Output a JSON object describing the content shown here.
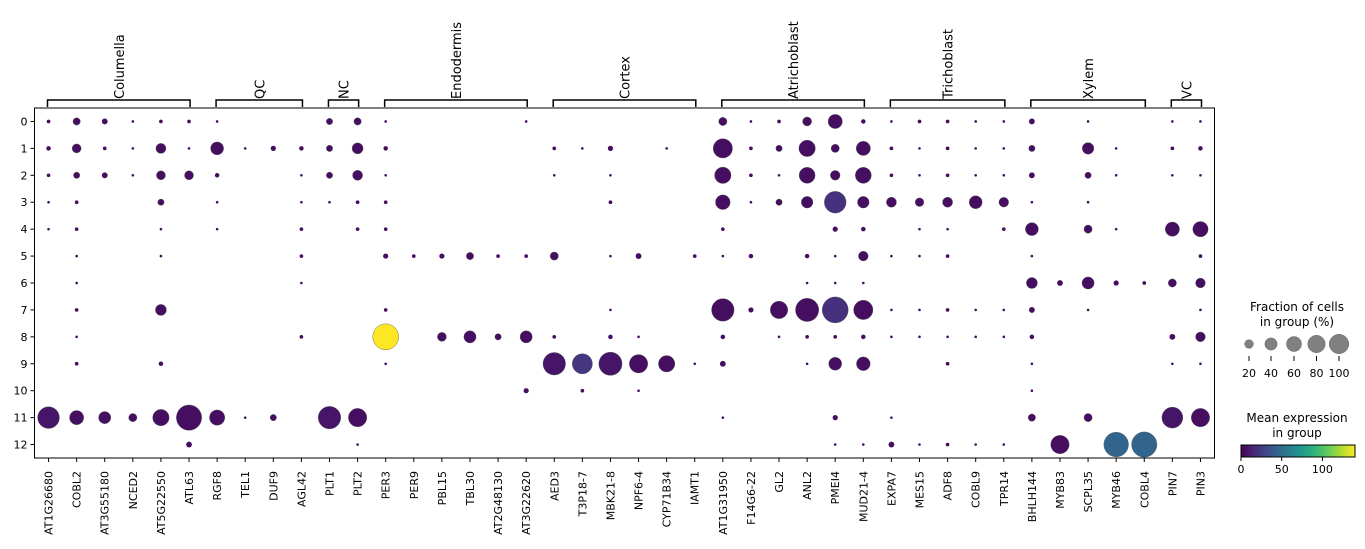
{
  "chart_data": {
    "type": "dotplot",
    "groups": [
      "0",
      "1",
      "2",
      "3",
      "4",
      "5",
      "6",
      "7",
      "8",
      "9",
      "10",
      "11",
      "12"
    ],
    "genes": [
      "AT1G26680",
      "COBL2",
      "AT3G55180",
      "NCED2",
      "AT5G22550",
      "ATL63",
      "RGF8",
      "TEL1",
      "DUF9",
      "AGL42",
      "PLT1",
      "PLT2",
      "PER3",
      "PER9",
      "PBL15",
      "TBL30",
      "AT2G48130",
      "AT3G22620",
      "AED3",
      "T3P18-7",
      "MBK21-8",
      "NPF6-4",
      "CYP71B34",
      "IAMT1",
      "AT1G31950",
      "F14G6-22",
      "GL2",
      "ANL2",
      "PMEI4",
      "MUD21-4",
      "EXPA7",
      "MES15",
      "ADF8",
      "COBL9",
      "TPR14",
      "BHLH144",
      "MYB83",
      "SCPL35",
      "MYB46",
      "COBL4",
      "PIN7",
      "PIN3"
    ],
    "gene_groups": [
      {
        "label": "Columella",
        "start": 0,
        "end": 5
      },
      {
        "label": "QC",
        "start": 6,
        "end": 9
      },
      {
        "label": "NC",
        "start": 10,
        "end": 11
      },
      {
        "label": "Endodermis",
        "start": 12,
        "end": 17
      },
      {
        "label": "Cortex",
        "start": 18,
        "end": 23
      },
      {
        "label": "Atrichoblast",
        "start": 24,
        "end": 29
      },
      {
        "label": "Trichoblast",
        "start": 30,
        "end": 34
      },
      {
        "label": "Xylem",
        "start": 35,
        "end": 39
      },
      {
        "label": "VC",
        "start": 40,
        "end": 41
      }
    ],
    "fraction": [
      [
        2,
        8,
        5,
        1,
        2,
        2,
        1,
        0,
        0,
        0,
        6,
        8,
        1,
        0,
        0,
        0,
        0,
        1,
        0,
        0,
        0,
        0,
        0,
        0,
        10,
        1,
        2,
        12,
        30,
        3,
        1,
        2,
        2,
        1,
        1,
        5,
        0,
        1,
        0,
        0,
        1,
        1
      ],
      [
        3,
        12,
        2,
        1,
        15,
        1,
        25,
        1,
        4,
        3,
        6,
        18,
        3,
        0,
        0,
        0,
        0,
        0,
        2,
        1,
        4,
        0,
        1,
        0,
        55,
        2,
        6,
        40,
        10,
        30,
        2,
        1,
        2,
        1,
        1,
        6,
        0,
        20,
        1,
        0,
        2,
        3
      ],
      [
        2,
        6,
        5,
        1,
        12,
        12,
        3,
        0,
        0,
        1,
        6,
        15,
        1,
        0,
        0,
        0,
        0,
        0,
        1,
        0,
        1,
        0,
        0,
        0,
        40,
        2,
        1,
        38,
        14,
        38,
        2,
        1,
        2,
        1,
        1,
        5,
        0,
        6,
        1,
        0,
        1,
        1
      ],
      [
        1,
        2,
        0,
        0,
        6,
        0,
        1,
        0,
        0,
        1,
        1,
        2,
        2,
        0,
        0,
        0,
        0,
        0,
        0,
        0,
        2,
        0,
        0,
        0,
        32,
        1,
        6,
        20,
        70,
        20,
        15,
        11,
        15,
        25,
        14,
        1,
        0,
        1,
        0,
        0,
        0,
        0
      ],
      [
        1,
        2,
        0,
        0,
        1,
        0,
        1,
        0,
        0,
        2,
        0,
        2,
        2,
        0,
        0,
        0,
        0,
        0,
        0,
        0,
        0,
        0,
        0,
        0,
        2,
        0,
        0,
        0,
        4,
        3,
        0,
        1,
        1,
        0,
        2,
        25,
        0,
        10,
        1,
        0,
        30,
        35
      ],
      [
        0,
        1,
        0,
        0,
        1,
        0,
        0,
        0,
        0,
        2,
        0,
        0,
        4,
        2,
        4,
        8,
        2,
        2,
        10,
        0,
        1,
        5,
        0,
        2,
        1,
        3,
        0,
        3,
        1,
        14,
        1,
        1,
        2,
        0,
        0,
        1,
        0,
        0,
        0,
        0,
        0,
        2
      ],
      [
        0,
        1,
        0,
        0,
        0,
        0,
        0,
        0,
        0,
        1,
        0,
        0,
        0,
        0,
        0,
        0,
        0,
        0,
        0,
        0,
        0,
        0,
        0,
        0,
        0,
        0,
        0,
        1,
        1,
        1,
        0,
        0,
        0,
        0,
        0,
        18,
        5,
        22,
        4,
        2,
        10,
        14
      ],
      [
        0,
        2,
        0,
        0,
        18,
        0,
        0,
        0,
        0,
        0,
        0,
        0,
        2,
        0,
        0,
        0,
        0,
        0,
        0,
        0,
        1,
        0,
        0,
        0,
        75,
        4,
        45,
        80,
        100,
        55,
        1,
        1,
        2,
        1,
        1,
        5,
        0,
        1,
        0,
        0,
        0,
        1
      ],
      [
        0,
        1,
        0,
        0,
        0,
        0,
        0,
        0,
        0,
        2,
        0,
        0,
        100,
        0,
        12,
        22,
        6,
        22,
        2,
        0,
        3,
        1,
        0,
        0,
        3,
        0,
        1,
        2,
        2,
        3,
        1,
        1,
        1,
        1,
        1,
        3,
        0,
        0,
        0,
        0,
        5,
        14
      ],
      [
        0,
        2,
        0,
        0,
        3,
        0,
        0,
        0,
        0,
        0,
        0,
        0,
        1,
        0,
        0,
        0,
        0,
        0,
        75,
        60,
        80,
        50,
        40,
        1,
        5,
        0,
        0,
        1,
        25,
        28,
        0,
        0,
        2,
        0,
        0,
        1,
        0,
        0,
        0,
        0,
        1,
        1
      ],
      [
        0,
        0,
        0,
        0,
        0,
        0,
        0,
        0,
        0,
        0,
        0,
        0,
        0,
        0,
        0,
        0,
        0,
        4,
        0,
        2,
        0,
        1,
        0,
        0,
        0,
        0,
        0,
        0,
        0,
        0,
        0,
        0,
        0,
        0,
        0,
        1,
        0,
        0,
        0,
        0,
        0,
        0
      ],
      [
        70,
        30,
        22,
        10,
        40,
        95,
        35,
        1,
        6,
        0,
        75,
        50,
        0,
        0,
        0,
        0,
        0,
        0,
        0,
        0,
        0,
        0,
        0,
        0,
        1,
        0,
        0,
        0,
        4,
        0,
        1,
        0,
        0,
        0,
        0,
        8,
        0,
        10,
        0,
        0,
        65,
        50
      ],
      [
        0,
        0,
        0,
        0,
        0,
        5,
        0,
        0,
        0,
        0,
        0,
        1,
        0,
        0,
        0,
        0,
        0,
        0,
        0,
        0,
        0,
        0,
        0,
        0,
        0,
        0,
        0,
        0,
        1,
        1,
        5,
        1,
        2,
        1,
        1,
        0,
        50,
        0,
        90,
        95,
        0,
        0
      ]
    ],
    "expression": [
      [
        5,
        5,
        5,
        5,
        5,
        5,
        5,
        5,
        5,
        5,
        5,
        5,
        5,
        5,
        5,
        5,
        5,
        5,
        5,
        5,
        5,
        5,
        5,
        5,
        5,
        5,
        5,
        5,
        5,
        5,
        5,
        5,
        5,
        5,
        5,
        5,
        5,
        5,
        5,
        5,
        5,
        5
      ],
      [
        5,
        5,
        5,
        5,
        5,
        5,
        5,
        5,
        5,
        5,
        5,
        5,
        5,
        5,
        5,
        5,
        5,
        5,
        5,
        5,
        5,
        5,
        5,
        5,
        5,
        5,
        5,
        5,
        5,
        5,
        5,
        5,
        5,
        5,
        5,
        5,
        5,
        5,
        5,
        5,
        5,
        5
      ],
      [
        5,
        5,
        5,
        5,
        5,
        5,
        5,
        5,
        5,
        5,
        5,
        5,
        5,
        5,
        5,
        5,
        5,
        5,
        5,
        5,
        5,
        5,
        5,
        5,
        5,
        5,
        5,
        5,
        5,
        5,
        5,
        5,
        5,
        5,
        5,
        5,
        5,
        5,
        5,
        5,
        5,
        5
      ],
      [
        5,
        5,
        5,
        5,
        5,
        5,
        5,
        5,
        5,
        5,
        5,
        5,
        5,
        5,
        5,
        5,
        5,
        5,
        5,
        5,
        5,
        5,
        5,
        5,
        5,
        5,
        5,
        5,
        20,
        5,
        5,
        5,
        5,
        5,
        5,
        5,
        5,
        5,
        5,
        5,
        5,
        5
      ],
      [
        5,
        5,
        5,
        5,
        5,
        5,
        5,
        5,
        5,
        5,
        5,
        5,
        5,
        5,
        5,
        5,
        5,
        5,
        5,
        5,
        5,
        5,
        5,
        5,
        5,
        5,
        5,
        5,
        5,
        5,
        5,
        5,
        5,
        5,
        5,
        5,
        5,
        5,
        5,
        5,
        5,
        5
      ],
      [
        5,
        5,
        5,
        5,
        5,
        5,
        5,
        5,
        5,
        5,
        5,
        5,
        5,
        5,
        5,
        5,
        5,
        5,
        5,
        5,
        5,
        5,
        5,
        5,
        5,
        5,
        5,
        5,
        5,
        5,
        5,
        5,
        5,
        5,
        5,
        5,
        5,
        5,
        5,
        5,
        5,
        5
      ],
      [
        5,
        5,
        5,
        5,
        5,
        5,
        5,
        5,
        5,
        5,
        5,
        5,
        5,
        5,
        5,
        5,
        5,
        5,
        5,
        5,
        5,
        5,
        5,
        5,
        5,
        5,
        5,
        5,
        5,
        5,
        5,
        5,
        5,
        5,
        5,
        5,
        5,
        5,
        5,
        5,
        5,
        5
      ],
      [
        5,
        5,
        5,
        5,
        5,
        5,
        5,
        5,
        5,
        5,
        5,
        5,
        5,
        5,
        5,
        5,
        5,
        5,
        5,
        5,
        5,
        5,
        5,
        5,
        5,
        5,
        5,
        5,
        20,
        5,
        5,
        5,
        5,
        5,
        5,
        5,
        5,
        5,
        5,
        5,
        5,
        5
      ],
      [
        5,
        5,
        5,
        5,
        5,
        5,
        5,
        5,
        5,
        5,
        5,
        5,
        140,
        5,
        5,
        5,
        5,
        5,
        5,
        5,
        5,
        5,
        5,
        5,
        5,
        5,
        5,
        5,
        5,
        5,
        5,
        5,
        5,
        5,
        5,
        5,
        5,
        5,
        5,
        5,
        5,
        5
      ],
      [
        5,
        5,
        5,
        5,
        5,
        5,
        5,
        5,
        5,
        5,
        5,
        5,
        5,
        5,
        5,
        5,
        5,
        5,
        8,
        22,
        8,
        5,
        5,
        5,
        5,
        5,
        5,
        5,
        5,
        5,
        5,
        5,
        5,
        5,
        5,
        5,
        5,
        5,
        5,
        5,
        5,
        5
      ],
      [
        5,
        5,
        5,
        5,
        5,
        5,
        5,
        5,
        5,
        5,
        5,
        5,
        5,
        5,
        5,
        5,
        5,
        5,
        5,
        5,
        5,
        5,
        5,
        5,
        5,
        5,
        5,
        5,
        5,
        5,
        5,
        5,
        5,
        5,
        5,
        5,
        5,
        5,
        5,
        5,
        5,
        5
      ],
      [
        8,
        5,
        5,
        5,
        5,
        5,
        5,
        5,
        5,
        5,
        8,
        5,
        5,
        5,
        5,
        5,
        5,
        5,
        5,
        5,
        5,
        5,
        5,
        5,
        5,
        5,
        5,
        5,
        5,
        5,
        5,
        5,
        5,
        5,
        5,
        5,
        5,
        5,
        5,
        5,
        8,
        5
      ],
      [
        5,
        5,
        5,
        5,
        5,
        5,
        5,
        5,
        5,
        5,
        5,
        5,
        5,
        5,
        5,
        5,
        5,
        5,
        5,
        5,
        5,
        5,
        5,
        5,
        5,
        5,
        5,
        5,
        5,
        5,
        5,
        5,
        5,
        5,
        5,
        5,
        5,
        5,
        45,
        45,
        5,
        5
      ]
    ],
    "legend_size": {
      "title": "Fraction of cells\nin group (%)",
      "values": [
        20,
        40,
        60,
        80,
        100
      ],
      "tick_labels": [
        "20",
        "40",
        "60",
        "80",
        "100"
      ]
    },
    "colorbar": {
      "title": "Mean expression\nin group",
      "colormap": "viridis",
      "range": [
        0,
        140
      ],
      "ticks": [
        0,
        50,
        100
      ],
      "tick_labels": [
        "0",
        "50",
        "100"
      ]
    },
    "grid": false
  }
}
